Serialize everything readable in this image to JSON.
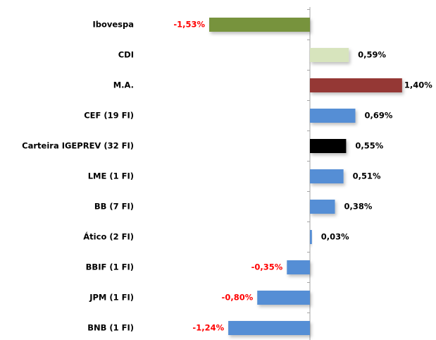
{
  "chart_data": {
    "type": "hbar",
    "categories": [
      "Ibovespa",
      "CDI",
      "M.A.",
      "CEF (19 FI)",
      "Carteira IGEPREV (32 FI)",
      "LME (1 FI)",
      "BB (7 FI)",
      "Ático (2 FI)",
      "BBIF (1 FI)",
      "JPM (1 FI)",
      "BNB (1 FI)"
    ],
    "values": [
      -1.53,
      0.59,
      1.4,
      0.69,
      0.55,
      0.51,
      0.38,
      0.03,
      -0.35,
      -0.8,
      -1.24
    ],
    "value_labels": [
      "-1,53%",
      "0,59%",
      "1,40%",
      "0,69%",
      "0,55%",
      "0,51%",
      "0,38%",
      "0,03%",
      "-0,35%",
      "-0,80%",
      "-1,24%"
    ],
    "colors": [
      "#77933c",
      "#d7e4bd",
      "#953735",
      "#558ed5",
      "#000000",
      "#558ed5",
      "#558ed5",
      "#558ed5",
      "#558ed5",
      "#558ed5",
      "#558ed5"
    ],
    "label_color": "#000000",
    "negative_label_color": "#ff0000"
  }
}
